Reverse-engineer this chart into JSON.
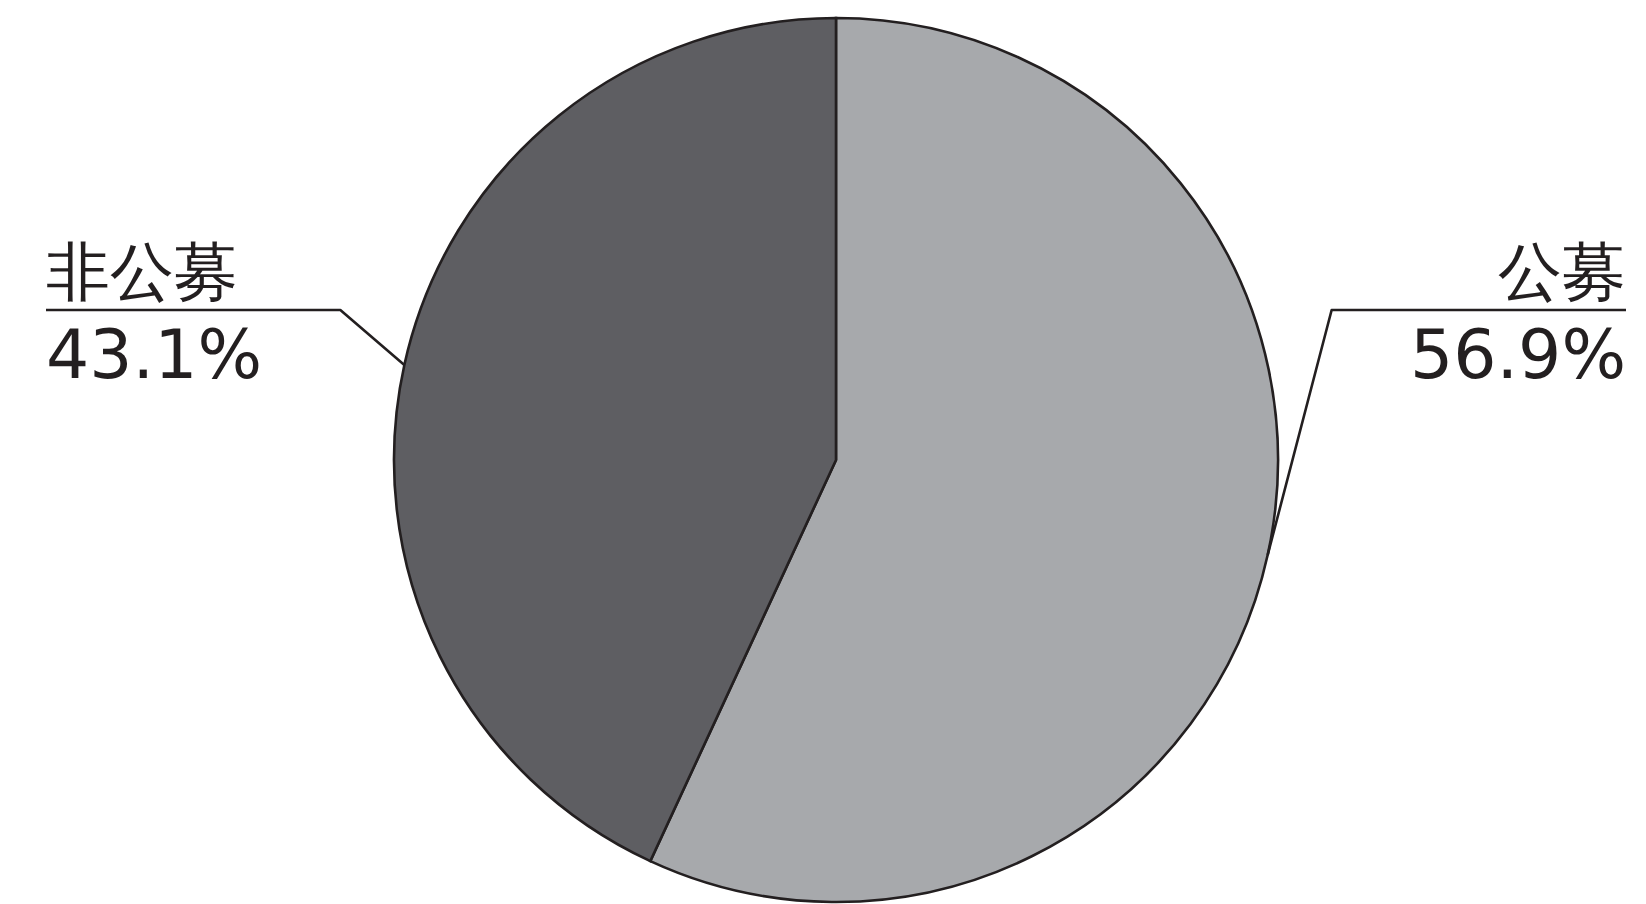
{
  "chart_data": {
    "type": "pie",
    "categories": [
      "公募",
      "非公募"
    ],
    "values": [
      56.9,
      43.1
    ],
    "colors": [
      "#a7a9ac",
      "#5e5e62"
    ],
    "value_labels": [
      "56.9%",
      "43.1%"
    ],
    "legend": false
  }
}
